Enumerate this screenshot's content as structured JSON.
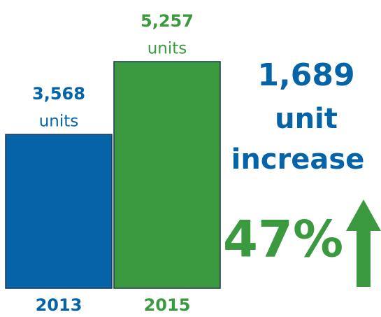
{
  "chart_data": {
    "type": "bar",
    "categories": [
      "2013",
      "2015"
    ],
    "values": [
      3568,
      5257
    ],
    "value_labels": [
      "3,568",
      "5,257"
    ],
    "unit_labels": [
      "units",
      "units"
    ],
    "colors": [
      "#0564a8",
      "#3b9a3f"
    ],
    "annotations": [
      "1,689",
      "unit",
      "increase",
      "47%"
    ]
  }
}
